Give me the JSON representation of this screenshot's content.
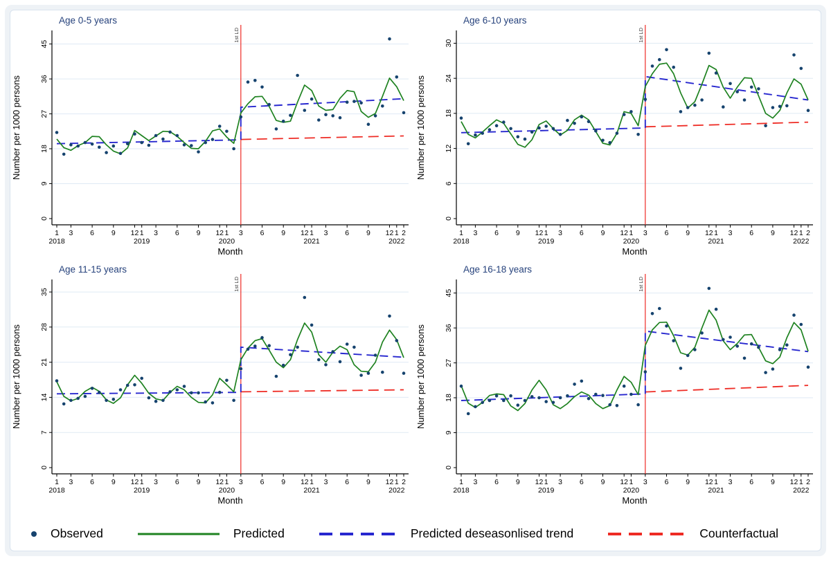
{
  "colors": {
    "navy": "#16436e",
    "green": "#1e8220",
    "blue": "#2727cf",
    "red": "#ee2b24",
    "grid": "#dfeaf4",
    "title": "#26427c",
    "axis": "#000000"
  },
  "y_axis_label": "Number per 1000 persons",
  "x_axis": {
    "label": "Month",
    "ticks": [
      {
        "m": 1,
        "t": "1",
        "y": "2018"
      },
      {
        "m": 3,
        "t": "3"
      },
      {
        "m": 6,
        "t": "6"
      },
      {
        "m": 9,
        "t": "9"
      },
      {
        "m": 12,
        "t": "12"
      },
      {
        "m": 13,
        "t": "1",
        "y": "2019"
      },
      {
        "m": 15,
        "t": "3"
      },
      {
        "m": 18,
        "t": "6"
      },
      {
        "m": 21,
        "t": "9"
      },
      {
        "m": 24,
        "t": "12"
      },
      {
        "m": 25,
        "t": "1",
        "y": "2020"
      },
      {
        "m": 27,
        "t": "3"
      },
      {
        "m": 30,
        "t": "6"
      },
      {
        "m": 33,
        "t": "9"
      },
      {
        "m": 36,
        "t": "12"
      },
      {
        "m": 37,
        "t": "1",
        "y": "2021"
      },
      {
        "m": 39,
        "t": "3"
      },
      {
        "m": 42,
        "t": "6"
      },
      {
        "m": 45,
        "t": "9"
      },
      {
        "m": 48,
        "t": "12"
      },
      {
        "m": 49,
        "t": "1",
        "y": "2022"
      },
      {
        "m": 50,
        "t": "2"
      }
    ]
  },
  "lockdown": {
    "month": 27,
    "label": "1st LD"
  },
  "legend": {
    "items": [
      {
        "label": "Observed",
        "type": "dot",
        "color_key": "navy"
      },
      {
        "label": "Predicted",
        "type": "solid",
        "color_key": "green"
      },
      {
        "label": "Predicted deseasonlised trend",
        "type": "dash",
        "color_key": "blue"
      },
      {
        "label": "Counterfactual",
        "type": "dash",
        "color_key": "red"
      }
    ]
  },
  "chart_data": [
    {
      "type": "line",
      "title": "Age 0-5 years",
      "xlabel": "Month",
      "ylabel": "Number per 1000 persons",
      "x_range": "Jan 2018 - Feb 2022, months 1-50, monthly",
      "y_ticks": [
        0,
        9,
        18,
        27,
        36,
        45
      ],
      "y_headroom": 47.6,
      "lockdown_month": 27,
      "observed": [
        22.2,
        16.6,
        19.0,
        18.7,
        19.6,
        19.2,
        18.4,
        17.0,
        18.7,
        16.8,
        19.3,
        21.8,
        19.6,
        18.9,
        21.4,
        20.5,
        22.3,
        21.4,
        19.0,
        18.8,
        17.2,
        19.6,
        20.4,
        23.8,
        22.5,
        18.0,
        26.2,
        35.2,
        35.6,
        33.9,
        29.4,
        23.1,
        25.1,
        26.6,
        36.9,
        27.9,
        30.8,
        25.4,
        26.8,
        26.5,
        26.0,
        30.0,
        30.2,
        29.8,
        24.3,
        26.5,
        29.0,
        46.3,
        36.5,
        27.3
      ],
      "predicted": [
        20.5,
        18.3,
        17.6,
        18.8,
        19.6,
        21.2,
        21.1,
        19.0,
        17.4,
        16.7,
        18.2,
        22.7,
        21.4,
        20.1,
        21.3,
        22.5,
        22.4,
        21.2,
        19.6,
        18.1,
        18.0,
        19.9,
        22.6,
        23.1,
        21.0,
        19.4,
        27.2,
        29.6,
        31.4,
        31.5,
        28.9,
        25.3,
        24.8,
        25.1,
        30.0,
        34.4,
        33.0,
        29.0,
        27.9,
        28.1,
        31.0,
        33.0,
        32.7,
        27.6,
        26.1,
        27.1,
        31.5,
        36.2,
        34.0,
        30.4
      ],
      "trend_pre": {
        "start": 19.3,
        "end": 20.3
      },
      "trend_post": {
        "start": 28.7,
        "end": 30.9
      },
      "counterfactual": {
        "start": 20.4,
        "end": 21.3
      }
    },
    {
      "type": "line",
      "title": "Age 6-10 years",
      "xlabel": "Month",
      "ylabel": "Number per 1000 persons",
      "x_range": "Jan 2018 - Feb 2022, months 1-50, monthly",
      "y_ticks": [
        0,
        6,
        12,
        18,
        24,
        30
      ],
      "y_headroom": 31.6,
      "lockdown_month": 27,
      "observed": [
        17.2,
        12.8,
        14.3,
        14.6,
        15.2,
        15.9,
        16.5,
        15.4,
        14.0,
        13.6,
        14.8,
        15.5,
        15.8,
        15.4,
        14.4,
        16.8,
        16.3,
        17.4,
        16.6,
        15.0,
        13.4,
        13.0,
        14.6,
        17.8,
        18.3,
        14.4,
        20.4,
        26.1,
        27.2,
        28.9,
        25.9,
        18.3,
        19.0,
        19.4,
        20.3,
        28.3,
        24.9,
        19.1,
        23.1,
        21.7,
        20.3,
        22.5,
        22.2,
        15.9,
        19.0,
        19.2,
        19.3,
        28.0,
        25.7,
        18.5
      ],
      "predicted": [
        16.6,
        14.4,
        13.8,
        14.8,
        15.9,
        16.9,
        16.3,
        14.5,
        12.7,
        12.2,
        13.5,
        16.1,
        16.7,
        15.4,
        14.3,
        15.1,
        16.9,
        17.7,
        16.9,
        14.9,
        12.9,
        12.6,
        14.6,
        18.3,
        18.0,
        15.9,
        22.6,
        24.8,
        26.4,
        26.6,
        24.8,
        21.5,
        18.9,
        20.0,
        23.0,
        26.2,
        25.5,
        22.5,
        20.6,
        22.5,
        24.1,
        24.0,
        21.0,
        18.0,
        17.2,
        18.5,
        21.5,
        23.9,
        23.0,
        20.3
      ],
      "trend_pre": {
        "start": 14.7,
        "end": 15.5
      },
      "trend_post": {
        "start": 24.3,
        "end": 20.3
      },
      "counterfactual": {
        "start": 15.7,
        "end": 16.5
      }
    },
    {
      "type": "line",
      "title": "Age 11-15 years",
      "xlabel": "Month",
      "ylabel": "Number per 1000 persons",
      "x_range": "Jan 2018 - Feb 2022, months 1-50, monthly",
      "y_ticks": [
        0,
        7,
        14,
        21,
        28,
        35
      ],
      "y_headroom": 36.8,
      "lockdown_month": 27,
      "observed": [
        17.3,
        12.7,
        13.4,
        13.8,
        14.2,
        15.8,
        15.0,
        13.4,
        13.6,
        15.5,
        16.4,
        16.5,
        17.8,
        13.9,
        13.2,
        13.4,
        15.1,
        15.5,
        16.2,
        14.9,
        14.9,
        13.1,
        12.9,
        15.0,
        17.4,
        13.4,
        19.7,
        23.6,
        24.2,
        25.9,
        24.3,
        18.2,
        20.4,
        22.5,
        24.0,
        33.9,
        28.4,
        21.5,
        20.5,
        23.1,
        21.1,
        24.6,
        24.0,
        18.4,
        18.8,
        22.4,
        19.0,
        30.2,
        25.3,
        18.8
      ],
      "predicted": [
        17.1,
        14.2,
        13.3,
        13.8,
        15.2,
        16.0,
        15.2,
        13.5,
        12.8,
        13.9,
        16.5,
        18.4,
        16.8,
        14.8,
        13.7,
        13.4,
        15.0,
        16.2,
        15.5,
        14.0,
        13.0,
        12.9,
        14.5,
        17.8,
        16.5,
        15.1,
        21.5,
        23.8,
        25.3,
        25.7,
        23.4,
        21.0,
        19.9,
        21.5,
        25.5,
        28.8,
        27.0,
        22.5,
        21.0,
        23.0,
        24.2,
        23.5,
        20.5,
        19.2,
        19.1,
        21.0,
        25.0,
        27.4,
        25.5,
        21.9
      ],
      "trend_pre": {
        "start": 14.7,
        "end": 15.0
      },
      "trend_post": {
        "start": 24.0,
        "end": 22.0
      },
      "counterfactual": {
        "start": 15.1,
        "end": 15.5
      }
    },
    {
      "type": "line",
      "title": "Age 16-18 years",
      "xlabel": "Month",
      "ylabel": "Number per 1000 persons",
      "x_range": "Jan 2018 - Feb 2022, months 1-50, monthly",
      "y_ticks": [
        0,
        9,
        18,
        27,
        36,
        45
      ],
      "y_headroom": 47.6,
      "lockdown_month": 27,
      "observed": [
        21.0,
        13.9,
        15.7,
        16.8,
        17.3,
        18.5,
        17.3,
        18.5,
        16.1,
        17.3,
        18.3,
        18.0,
        17.0,
        16.8,
        18.0,
        18.5,
        21.5,
        22.3,
        17.8,
        18.9,
        18.6,
        16.2,
        16.0,
        21.0,
        18.9,
        16.2,
        24.7,
        39.7,
        41.0,
        36.5,
        32.7,
        25.6,
        28.9,
        30.4,
        34.7,
        46.2,
        40.8,
        33.0,
        33.6,
        31.3,
        28.2,
        31.9,
        31.0,
        24.5,
        25.4,
        30.4,
        31.6,
        39.3,
        36.9,
        25.9
      ],
      "predicted": [
        21.1,
        16.6,
        15.5,
        16.8,
        18.6,
        19.0,
        18.8,
        15.9,
        14.7,
        16.5,
        20.0,
        22.5,
        20.0,
        16.2,
        15.2,
        16.5,
        18.3,
        19.5,
        18.7,
        16.5,
        15.2,
        16.0,
        20.0,
        23.5,
        22.0,
        18.8,
        31.5,
        35.5,
        37.4,
        37.5,
        34.0,
        29.6,
        29.0,
        31.0,
        36.0,
        40.6,
        38.0,
        32.7,
        30.4,
        32.0,
        34.2,
        34.3,
        31.0,
        27.5,
        26.8,
        28.5,
        33.5,
        37.4,
        35.5,
        30.0
      ],
      "trend_pre": {
        "start": 17.3,
        "end": 19.0
      },
      "trend_post": {
        "start": 35.2,
        "end": 29.9
      },
      "counterfactual": {
        "start": 19.5,
        "end": 21.2
      }
    }
  ]
}
